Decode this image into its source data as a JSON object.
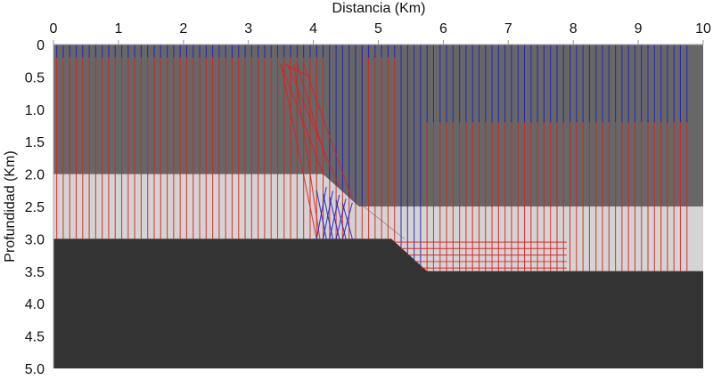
{
  "title": "Distancia (Km)",
  "ylabel": "Profundidad (Km)",
  "x_ticks": [
    "0",
    "1",
    "2",
    "3",
    "4",
    "5",
    "6",
    "7",
    "8",
    "9",
    "10"
  ],
  "y_ticks": [
    "0",
    "0.5",
    "1.0",
    "1.5",
    "2.0",
    "2.5",
    "3.0",
    "3.5",
    "4.0",
    "4.5",
    "5.0"
  ],
  "colors": {
    "layer_upper": "#676767",
    "layer_middle": "#d4d4d4",
    "layer_basement": "#333333",
    "ray_red": "#e02020",
    "ray_blue": "#2020c0"
  },
  "model": {
    "xlim": [
      0,
      10
    ],
    "ylim": [
      0,
      5
    ],
    "middle_layer": [
      [
        0,
        2.0
      ],
      [
        4.15,
        2.0
      ],
      [
        4.7,
        2.5
      ],
      [
        10,
        2.5
      ],
      [
        10,
        3.5
      ],
      [
        5.75,
        3.5
      ],
      [
        5.2,
        3.0
      ],
      [
        0,
        3.0
      ]
    ],
    "basement": [
      [
        0,
        3.0
      ],
      [
        5.2,
        3.0
      ],
      [
        5.75,
        3.5
      ],
      [
        10,
        3.5
      ],
      [
        10,
        5
      ],
      [
        0,
        5
      ]
    ]
  }
}
